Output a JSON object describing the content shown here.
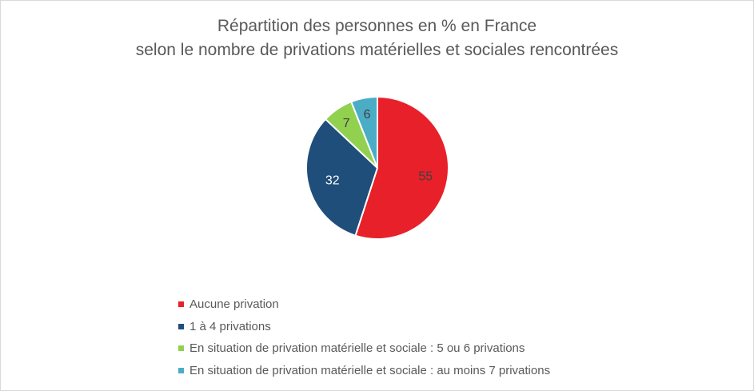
{
  "chart_data": {
    "type": "pie",
    "title_lines": [
      "Répartition des personnes en % en France",
      "selon le nombre de privations matérielles et sociales rencontrées"
    ],
    "categories": [
      "Aucune privation",
      "1 à 4 privations",
      "En situation de privation matérielle et sociale : 5 ou 6 privations",
      "En situation de privation matérielle et sociale : au moins 7 privations"
    ],
    "values": [
      55,
      32,
      7,
      6
    ],
    "colors": [
      "#e8202a",
      "#1f4e7a",
      "#92d050",
      "#4bacc6"
    ],
    "label_colors": [
      "#404040",
      "#ffffff",
      "#404040",
      "#404040"
    ],
    "legend_position": "bottom",
    "start_angle": "12 o'clock, clockwise"
  }
}
